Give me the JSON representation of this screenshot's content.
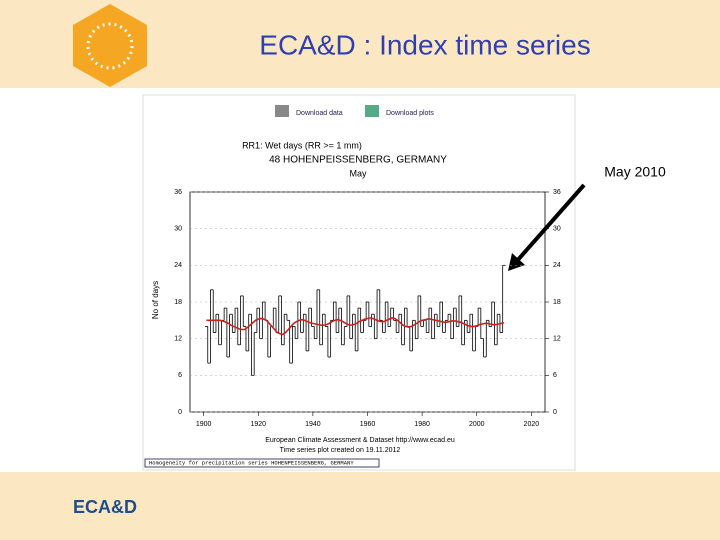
{
  "slide": {
    "title": "ECA&D : Index time series",
    "annotation": "May 2010",
    "footer_logo": "ECA&D",
    "download_data": "Download data",
    "download_plots": "Download plots",
    "bottom_bar": "Homogeneity for precipitation series HOHENPEISSENBERG, GERMANY"
  },
  "chart_data": {
    "type": "line",
    "step": true,
    "title": [
      "RR1: Wet days (RR >= 1 mm)",
      "48 HOHENPEISSENBERG, GERMANY",
      "May"
    ],
    "ylabel": "No of days",
    "footer": [
      "European Climate Assessment & Dataset http://www.ecad.eu",
      "Time series plot created on 19.11.2012"
    ],
    "x": [
      1901,
      1902,
      1903,
      1904,
      1905,
      1906,
      1907,
      1908,
      1909,
      1910,
      1911,
      1912,
      1913,
      1914,
      1915,
      1916,
      1917,
      1918,
      1919,
      1920,
      1921,
      1922,
      1923,
      1924,
      1925,
      1926,
      1927,
      1928,
      1929,
      1930,
      1931,
      1932,
      1933,
      1934,
      1935,
      1936,
      1937,
      1938,
      1939,
      1940,
      1941,
      1942,
      1943,
      1944,
      1945,
      1946,
      1947,
      1948,
      1949,
      1950,
      1951,
      1952,
      1953,
      1954,
      1955,
      1956,
      1957,
      1958,
      1959,
      1960,
      1961,
      1962,
      1963,
      1964,
      1965,
      1966,
      1967,
      1968,
      1969,
      1970,
      1971,
      1972,
      1973,
      1974,
      1975,
      1976,
      1977,
      1978,
      1979,
      1980,
      1981,
      1982,
      1983,
      1984,
      1985,
      1986,
      1987,
      1988,
      1989,
      1990,
      1991,
      1992,
      1993,
      1994,
      1995,
      1996,
      1997,
      1998,
      1999,
      2000,
      2001,
      2002,
      2003,
      2004,
      2005,
      2006,
      2007,
      2008,
      2009,
      2010
    ],
    "series": [
      {
        "color": "#000000",
        "values": [
          14,
          8,
          20,
          13,
          16,
          11,
          15,
          17,
          9,
          16,
          13,
          17,
          11,
          19,
          14,
          10,
          16,
          6,
          13,
          17,
          12,
          18,
          15,
          9,
          14,
          17,
          13,
          19,
          11,
          16,
          15,
          8,
          14,
          12,
          18,
          13,
          16,
          10,
          17,
          14,
          12,
          20,
          11,
          16,
          14,
          9,
          15,
          18,
          13,
          17,
          11,
          14,
          19,
          12,
          16,
          10,
          17,
          13,
          15,
          18,
          14,
          16,
          12,
          20,
          15,
          13,
          18,
          14,
          17,
          15,
          13,
          16,
          11,
          17,
          14,
          10,
          15,
          12,
          19,
          14,
          15,
          13,
          17,
          12,
          16,
          14,
          18,
          13,
          15,
          16,
          12,
          17,
          14,
          19,
          11,
          15,
          13,
          16,
          10,
          14,
          17,
          12,
          9,
          15,
          14,
          18,
          11,
          16,
          13,
          24
        ]
      },
      {
        "color": "#cc2020",
        "values": [
          15,
          15,
          15,
          15,
          15,
          15,
          14.9,
          14.7,
          14.5,
          14.2,
          14,
          13.8,
          13.6,
          13.5,
          13.5,
          13.8,
          14.2,
          14.6,
          15,
          15.2,
          15.3,
          15.2,
          15,
          14.5,
          14,
          13.5,
          13,
          12.8,
          12.7,
          13,
          13.5,
          14,
          14.5,
          14.8,
          15,
          15.1,
          15,
          14.8,
          14.6,
          14.5,
          14.4,
          14.3,
          14.2,
          14.2,
          14.3,
          14.5,
          14.8,
          15,
          15.1,
          15,
          14.8,
          14.5,
          14.3,
          14.2,
          14.3,
          14.5,
          14.8,
          15,
          15.2,
          15.3,
          15.4,
          15.3,
          15.1,
          14.9,
          14.8,
          14.8,
          15,
          15.2,
          15.4,
          15.3,
          15,
          14.6,
          14.2,
          14,
          13.9,
          14,
          14.2,
          14.5,
          14.8,
          15,
          15.1,
          15.2,
          15.2,
          15.1,
          15,
          14.9,
          14.8,
          14.7,
          14.7,
          14.8,
          14.9,
          14.9,
          14.8,
          14.7,
          14.5,
          14.3,
          14.1,
          14,
          14,
          14.1,
          14.3,
          14.4,
          14.5,
          14.5,
          14.4,
          14.3,
          14.3,
          14.4,
          14.5,
          14.6
        ]
      }
    ],
    "xlim": [
      1895,
      2025
    ],
    "xticks": [
      1900,
      1920,
      1940,
      1960,
      1980,
      2000,
      2020
    ],
    "ylim": [
      0,
      36
    ],
    "yticks": [
      0,
      6,
      12,
      18,
      24,
      30,
      36
    ],
    "y2lim": [
      0,
      36
    ],
    "y2ticks": [
      0,
      6,
      12,
      18,
      24,
      30,
      36
    ]
  }
}
